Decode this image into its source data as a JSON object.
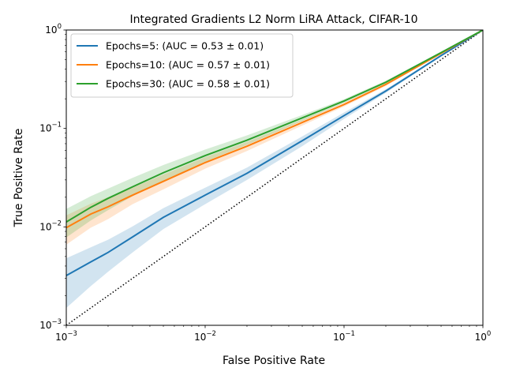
{
  "chart_data": {
    "type": "line",
    "title": "Integrated Gradients L2 Norm LiRA Attack, CIFAR-10",
    "xlabel": "False Positive Rate",
    "ylabel": "True Positive Rate",
    "xscale": "log",
    "yscale": "log",
    "xlim": [
      0.001,
      1
    ],
    "ylim": [
      0.001,
      1
    ],
    "grid": false,
    "legend_position": "top-left",
    "x_ticks": [
      {
        "value": 0.001,
        "base": "10",
        "exp": "−3"
      },
      {
        "value": 0.01,
        "base": "10",
        "exp": "−2"
      },
      {
        "value": 0.1,
        "base": "10",
        "exp": "−1"
      },
      {
        "value": 1,
        "base": "10",
        "exp": "0"
      }
    ],
    "y_ticks": [
      {
        "value": 0.001,
        "base": "10",
        "exp": "−3"
      },
      {
        "value": 0.01,
        "base": "10",
        "exp": "−2"
      },
      {
        "value": 0.1,
        "base": "10",
        "exp": "−1"
      },
      {
        "value": 1,
        "base": "10",
        "exp": "0"
      }
    ],
    "reference_line": {
      "style": "dotted",
      "color": "#000000",
      "x": [
        0.001,
        1
      ],
      "y": [
        0.001,
        1
      ]
    },
    "series": [
      {
        "name": "Epochs=5: (AUC = 0.53 ± 0.01)",
        "color": "#1f77b4",
        "x": [
          0.001,
          0.0015,
          0.002,
          0.003,
          0.005,
          0.01,
          0.02,
          0.05,
          0.1,
          0.2,
          0.5,
          1.0
        ],
        "y": [
          0.0032,
          0.0044,
          0.0055,
          0.0079,
          0.0125,
          0.021,
          0.035,
          0.075,
          0.135,
          0.24,
          0.55,
          1.0
        ],
        "lower": [
          0.0015,
          0.0025,
          0.0035,
          0.0055,
          0.0095,
          0.017,
          0.03,
          0.066,
          0.125,
          0.23,
          0.54,
          1.0
        ],
        "upper": [
          0.0048,
          0.0062,
          0.0074,
          0.0101,
          0.0155,
          0.025,
          0.04,
          0.083,
          0.145,
          0.25,
          0.56,
          1.0
        ]
      },
      {
        "name": "Epochs=10: (AUC = 0.57 ± 0.01)",
        "color": "#ff7f0e",
        "x": [
          0.001,
          0.0015,
          0.002,
          0.003,
          0.005,
          0.01,
          0.02,
          0.05,
          0.1,
          0.2,
          0.5,
          1.0
        ],
        "y": [
          0.0098,
          0.0135,
          0.016,
          0.021,
          0.029,
          0.045,
          0.066,
          0.115,
          0.175,
          0.28,
          0.58,
          1.0
        ],
        "lower": [
          0.0066,
          0.0098,
          0.012,
          0.017,
          0.024,
          0.039,
          0.059,
          0.107,
          0.167,
          0.27,
          0.57,
          1.0
        ],
        "upper": [
          0.0131,
          0.0172,
          0.02,
          0.025,
          0.034,
          0.051,
          0.073,
          0.123,
          0.183,
          0.29,
          0.59,
          1.0
        ]
      },
      {
        "name": "Epochs=30: (AUC = 0.58 ± 0.01)",
        "color": "#2ca02c",
        "x": [
          0.001,
          0.0015,
          0.002,
          0.003,
          0.005,
          0.01,
          0.02,
          0.05,
          0.1,
          0.2,
          0.5,
          1.0
        ],
        "y": [
          0.0112,
          0.0158,
          0.0195,
          0.0255,
          0.0355,
          0.053,
          0.076,
          0.128,
          0.19,
          0.295,
          0.59,
          1.0
        ],
        "lower": [
          0.0078,
          0.0116,
          0.0148,
          0.0205,
          0.0295,
          0.046,
          0.068,
          0.119,
          0.182,
          0.285,
          0.58,
          1.0
        ],
        "upper": [
          0.0152,
          0.0205,
          0.0245,
          0.0315,
          0.0425,
          0.061,
          0.085,
          0.137,
          0.198,
          0.305,
          0.6,
          1.0
        ]
      }
    ]
  }
}
